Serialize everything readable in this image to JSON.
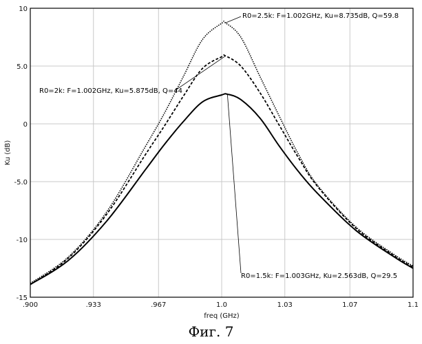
{
  "chart_data": {
    "type": "line",
    "title": "",
    "xlabel": "freq (GHz)",
    "ylabel": "Ku (dB)",
    "xlim": [
      0.9,
      1.1
    ],
    "ylim": [
      -15,
      10
    ],
    "x_ticks": [
      0.9,
      0.933,
      0.967,
      1.0,
      1.033,
      1.067,
      1.1
    ],
    "x_tick_labels": [
      ".900",
      ".933",
      ".967",
      "1.0",
      "1.03",
      "1.07",
      "1.1"
    ],
    "y_ticks": [
      10,
      5,
      0,
      -5,
      -10,
      -15
    ],
    "y_tick_labels": [
      "10",
      "5.0",
      "0",
      "-5.0",
      "-10",
      "-15"
    ],
    "grid": true,
    "series": [
      {
        "name": "R0=2.5k",
        "line_style": "dotted",
        "x": [
          0.9,
          0.92,
          0.94,
          0.96,
          0.97,
          0.98,
          0.99,
          1.0,
          1.002,
          1.01,
          1.02,
          1.03,
          1.04,
          1.05,
          1.07,
          1.09,
          1.1
        ],
        "y": [
          -13.8,
          -11.5,
          -7.6,
          -2.0,
          0.9,
          4.1,
          7.3,
          8.7,
          8.735,
          7.5,
          4.1,
          0.7,
          -2.6,
          -5.3,
          -8.9,
          -11.3,
          -12.3
        ]
      },
      {
        "name": "R0=2k",
        "line_style": "dashed",
        "x": [
          0.9,
          0.92,
          0.94,
          0.96,
          0.97,
          0.98,
          0.99,
          1.0,
          1.002,
          1.01,
          1.02,
          1.03,
          1.04,
          1.05,
          1.07,
          1.09,
          1.1
        ],
        "y": [
          -13.9,
          -11.6,
          -7.8,
          -2.7,
          -0.2,
          2.4,
          4.8,
          5.8,
          5.875,
          5.0,
          2.7,
          -0.1,
          -2.9,
          -5.4,
          -9.0,
          -11.4,
          -12.4
        ]
      },
      {
        "name": "R0=1.5k",
        "line_style": "solid",
        "x": [
          0.9,
          0.92,
          0.94,
          0.96,
          0.97,
          0.98,
          0.99,
          1.0,
          1.003,
          1.01,
          1.02,
          1.03,
          1.04,
          1.05,
          1.07,
          1.09,
          1.1
        ],
        "y": [
          -13.9,
          -11.8,
          -8.4,
          -4.0,
          -1.8,
          0.2,
          1.9,
          2.5,
          2.563,
          2.1,
          0.5,
          -1.9,
          -4.1,
          -6.0,
          -9.2,
          -11.5,
          -12.5
        ]
      }
    ],
    "annotations": [
      {
        "text": "R0=2.5k: F=1.002GHz, Ku=8.735dB, Q=59.8",
        "x": 1.002,
        "y": 8.735
      },
      {
        "text": "R0=2k: F=1.002GHz, Ku=5.875dB, Q=44",
        "x": 1.002,
        "y": 5.875
      },
      {
        "text": "R0=1.5k: F=1.003GHz, Ku=2.563dB, Q=29.5",
        "x": 1.003,
        "y": 2.563
      }
    ]
  },
  "caption": "Фиг. 7"
}
